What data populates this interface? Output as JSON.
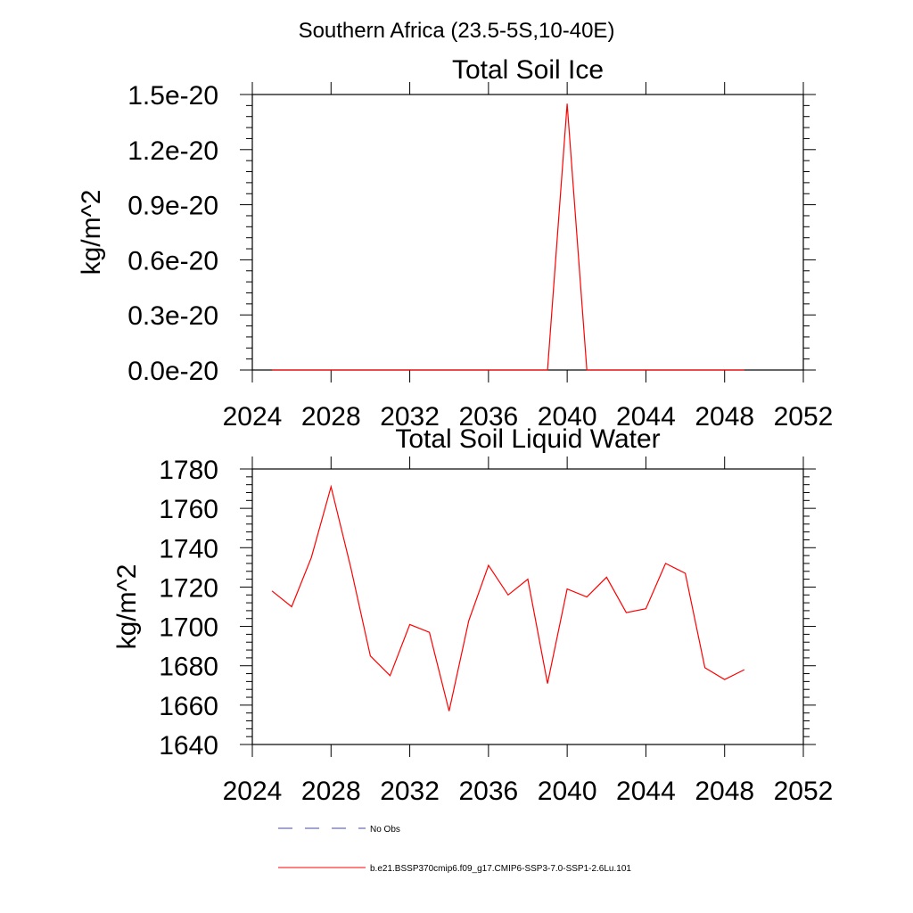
{
  "figure_title": "Southern Africa (23.5-5S,10-40E)",
  "colors": {
    "series": "#ff0000",
    "no_obs": "#4a4aa0",
    "axis": "#000000"
  },
  "legend": [
    {
      "label": "No Obs",
      "style": "dashed"
    },
    {
      "label": "b.e21.BSSP370cmip6.f09_g17.CMIP6-SSP3-7.0-SSP1-2.6Lu.101",
      "style": "solid"
    }
  ],
  "chart_data": [
    {
      "type": "line",
      "title": "Total Soil Ice",
      "xlabel": "",
      "ylabel": "kg/m^2",
      "xlim": [
        2024,
        2052
      ],
      "ylim": [
        0,
        1.5e-20
      ],
      "xticks": [
        2024,
        2028,
        2032,
        2036,
        2040,
        2044,
        2048,
        2052
      ],
      "xtick_labels": [
        "2024",
        "2028",
        "2032",
        "2036",
        "2040",
        "2044",
        "2048",
        "2052"
      ],
      "yticks": [
        0,
        3e-21,
        6e-21,
        9e-21,
        1.2e-20,
        1.5e-20
      ],
      "ytick_labels": [
        "0.0e-20",
        "0.3e-20",
        "0.6e-20",
        "0.9e-20",
        "1.2e-20",
        "1.5e-20"
      ],
      "grid": false,
      "series": [
        {
          "x": [
            2025,
            2026,
            2027,
            2028,
            2029,
            2030,
            2031,
            2032,
            2033,
            2034,
            2035,
            2036,
            2037,
            2038,
            2039,
            2040,
            2041,
            2042,
            2043,
            2044,
            2045,
            2046,
            2047,
            2048,
            2049
          ],
          "values": [
            0,
            0,
            0,
            0,
            0,
            0,
            0,
            0,
            0,
            0,
            0,
            0,
            0,
            0,
            0,
            1.45e-20,
            0,
            0,
            0,
            0,
            0,
            0,
            0,
            0,
            0
          ]
        }
      ]
    },
    {
      "type": "line",
      "title": "Total Soil Liquid Water",
      "xlabel": "",
      "ylabel": "kg/m^2",
      "xlim": [
        2024,
        2052
      ],
      "ylim": [
        1640,
        1780
      ],
      "xticks": [
        2024,
        2028,
        2032,
        2036,
        2040,
        2044,
        2048,
        2052
      ],
      "xtick_labels": [
        "2024",
        "2028",
        "2032",
        "2036",
        "2040",
        "2044",
        "2048",
        "2052"
      ],
      "yticks": [
        1640,
        1660,
        1680,
        1700,
        1720,
        1740,
        1760,
        1780
      ],
      "ytick_labels": [
        "1640",
        "1660",
        "1680",
        "1700",
        "1720",
        "1740",
        "1760",
        "1780"
      ],
      "grid": false,
      "series": [
        {
          "x": [
            2025,
            2026,
            2027,
            2028,
            2029,
            2030,
            2031,
            2032,
            2033,
            2034,
            2035,
            2036,
            2037,
            2038,
            2039,
            2040,
            2041,
            2042,
            2043,
            2044,
            2045,
            2046,
            2047,
            2048,
            2049
          ],
          "values": [
            1718,
            1710,
            1735,
            1771,
            1730,
            1685,
            1675,
            1701,
            1697,
            1657,
            1703,
            1731,
            1716,
            1724,
            1671,
            1719,
            1715,
            1725,
            1707,
            1709,
            1732,
            1727,
            1679,
            1673,
            1678
          ]
        }
      ]
    }
  ]
}
